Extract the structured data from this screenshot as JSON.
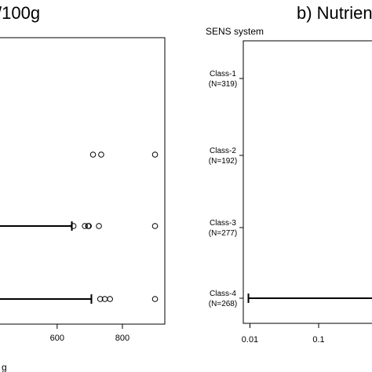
{
  "chart_data": [
    {
      "type": "box",
      "title": "/100g",
      "xlabel": "g",
      "xlim": [
        420,
        930
      ],
      "x_ticks": [
        600,
        800
      ],
      "y_ticks": [],
      "rows": [
        {
          "whisker_hi": null,
          "outliers": [
            710,
            735,
            900
          ]
        },
        {
          "whisker_hi": 645,
          "outliers": [
            650,
            685,
            695,
            697,
            728,
            900
          ]
        },
        {
          "whisker_hi": 705,
          "outliers": [
            732,
            746,
            762,
            900
          ]
        }
      ]
    },
    {
      "type": "box",
      "title": "b) Nutrien",
      "subtitle": "SENS system",
      "x_scale": "log",
      "xlim": [
        0.008,
        0.7
      ],
      "x_ticks": [
        "0.01",
        "0.1"
      ],
      "categories": [
        "Class-1\n(N=319)",
        "Class-2\n(N=192)",
        "Class-3\n(N=277)",
        "Class-4\n(N=268)"
      ],
      "rows": [
        {
          "category": "Class-1",
          "n_label": "(N=319)",
          "whisker_lo": null
        },
        {
          "category": "Class-2",
          "n_label": "(N=192)",
          "whisker_lo": null
        },
        {
          "category": "Class-3",
          "n_label": "(N=277)",
          "whisker_lo": null
        },
        {
          "category": "Class-4",
          "n_label": "(N=268)",
          "whisker_lo": 0.0095
        }
      ]
    }
  ]
}
